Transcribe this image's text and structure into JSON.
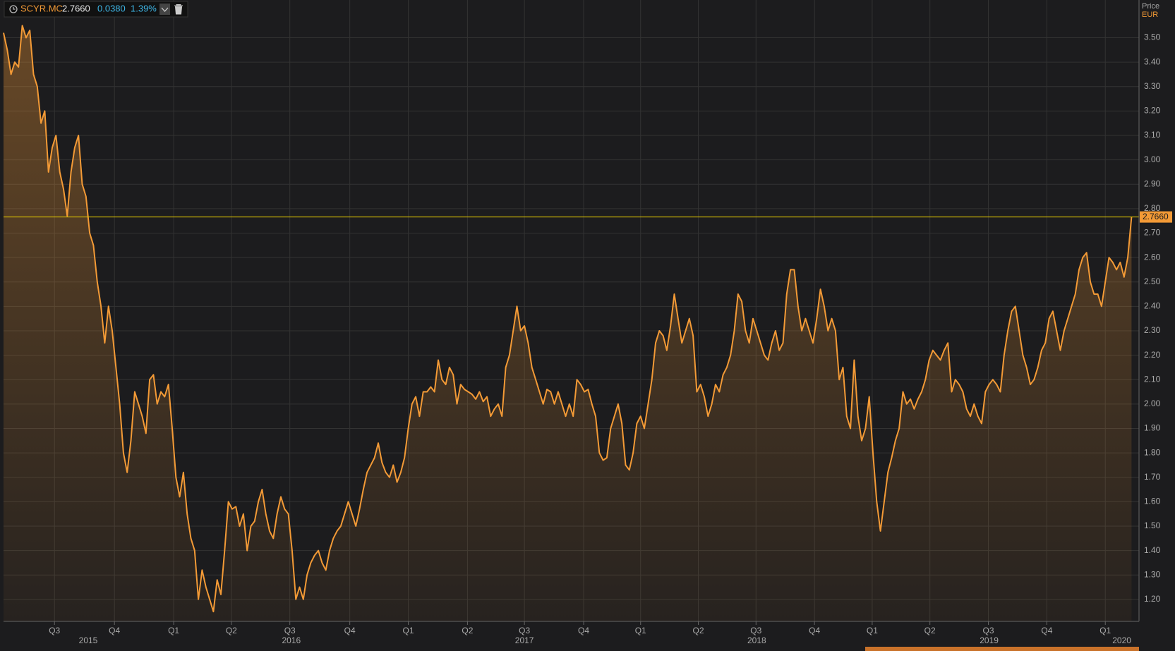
{
  "chart_data": {
    "type": "line",
    "ticker": "SCYR.MC",
    "last": {
      "value": 2.766,
      "label": "2.7660"
    },
    "change": {
      "value": 0.038,
      "label": "0.0380"
    },
    "change_pct": {
      "value": 1.39,
      "label": "1.39%"
    },
    "y_label": "Price",
    "y_unit": "EUR",
    "series": [
      {
        "name": "SCYR.MC",
        "color": "#f39a36",
        "values": [
          3.52,
          3.45,
          3.35,
          3.4,
          3.38,
          3.55,
          3.5,
          3.53,
          3.35,
          3.3,
          3.15,
          3.2,
          2.95,
          3.05,
          3.1,
          2.95,
          2.88,
          2.77,
          2.95,
          3.05,
          3.1,
          2.9,
          2.85,
          2.7,
          2.65,
          2.5,
          2.4,
          2.25,
          2.4,
          2.3,
          2.15,
          2.0,
          1.8,
          1.72,
          1.85,
          2.05,
          2.0,
          1.95,
          1.88,
          2.1,
          2.12,
          2.0,
          2.05,
          2.03,
          2.08,
          1.9,
          1.7,
          1.62,
          1.72,
          1.55,
          1.45,
          1.4,
          1.2,
          1.32,
          1.25,
          1.2,
          1.15,
          1.28,
          1.22,
          1.4,
          1.6,
          1.57,
          1.58,
          1.5,
          1.55,
          1.4,
          1.5,
          1.52,
          1.6,
          1.65,
          1.55,
          1.48,
          1.45,
          1.55,
          1.62,
          1.57,
          1.55,
          1.4,
          1.2,
          1.25,
          1.2,
          1.3,
          1.35,
          1.38,
          1.4,
          1.35,
          1.32,
          1.4,
          1.45,
          1.48,
          1.5,
          1.55,
          1.6,
          1.55,
          1.5,
          1.57,
          1.65,
          1.72,
          1.75,
          1.78,
          1.84,
          1.76,
          1.72,
          1.7,
          1.75,
          1.68,
          1.72,
          1.78,
          1.9,
          2.0,
          2.03,
          1.95,
          2.05,
          2.05,
          2.07,
          2.05,
          2.18,
          2.1,
          2.08,
          2.15,
          2.12,
          2.0,
          2.08,
          2.06,
          2.05,
          2.04,
          2.02,
          2.05,
          2.01,
          2.03,
          1.95,
          1.98,
          2.0,
          1.95,
          2.15,
          2.2,
          2.3,
          2.4,
          2.3,
          2.32,
          2.25,
          2.15,
          2.1,
          2.05,
          2.0,
          2.06,
          2.05,
          2.0,
          2.05,
          2.0,
          1.95,
          2.0,
          1.95,
          2.1,
          2.08,
          2.05,
          2.06,
          2.0,
          1.95,
          1.8,
          1.77,
          1.78,
          1.9,
          1.95,
          2.0,
          1.92,
          1.75,
          1.73,
          1.8,
          1.92,
          1.95,
          1.9,
          2.0,
          2.1,
          2.25,
          2.3,
          2.28,
          2.22,
          2.32,
          2.45,
          2.35,
          2.25,
          2.3,
          2.35,
          2.28,
          2.05,
          2.08,
          2.03,
          1.95,
          2.0,
          2.08,
          2.05,
          2.12,
          2.15,
          2.2,
          2.3,
          2.45,
          2.42,
          2.3,
          2.25,
          2.35,
          2.3,
          2.25,
          2.2,
          2.18,
          2.25,
          2.3,
          2.22,
          2.25,
          2.45,
          2.55,
          2.55,
          2.4,
          2.3,
          2.35,
          2.3,
          2.25,
          2.35,
          2.47,
          2.4,
          2.3,
          2.35,
          2.3,
          2.1,
          2.15,
          1.95,
          1.9,
          2.18,
          1.95,
          1.85,
          1.9,
          2.03,
          1.8,
          1.6,
          1.48,
          1.6,
          1.72,
          1.78,
          1.85,
          1.9,
          2.05,
          2.0,
          2.02,
          1.98,
          2.02,
          2.05,
          2.1,
          2.18,
          2.22,
          2.2,
          2.18,
          2.22,
          2.25,
          2.05,
          2.1,
          2.08,
          2.05,
          1.98,
          1.95,
          2.0,
          1.95,
          1.92,
          2.05,
          2.08,
          2.1,
          2.08,
          2.05,
          2.2,
          2.3,
          2.38,
          2.4,
          2.3,
          2.2,
          2.15,
          2.08,
          2.1,
          2.15,
          2.22,
          2.25,
          2.35,
          2.38,
          2.3,
          2.22,
          2.3,
          2.35,
          2.4,
          2.45,
          2.55,
          2.6,
          2.62,
          2.5,
          2.45,
          2.45,
          2.4,
          2.5,
          2.6,
          2.58,
          2.55,
          2.58,
          2.52,
          2.6,
          2.766
        ]
      }
    ],
    "xlim": [
      0,
      303
    ],
    "xticks": [
      {
        "value": 13.6,
        "label": "Q3"
      },
      {
        "value": 29.6,
        "label": "Q4"
      },
      {
        "value": 45.4,
        "label": "Q1"
      },
      {
        "value": 60.8,
        "label": "Q2"
      },
      {
        "value": 76.4,
        "label": "Q3"
      },
      {
        "value": 92.4,
        "label": "Q4"
      },
      {
        "value": 108,
        "label": "Q1"
      },
      {
        "value": 123.8,
        "label": "Q2"
      },
      {
        "value": 139,
        "label": "Q3"
      },
      {
        "value": 154.8,
        "label": "Q4"
      },
      {
        "value": 170,
        "label": "Q1"
      },
      {
        "value": 185.4,
        "label": "Q2"
      },
      {
        "value": 200.8,
        "label": "Q3"
      },
      {
        "value": 216.4,
        "label": "Q4"
      },
      {
        "value": 231.8,
        "label": "Q1"
      },
      {
        "value": 247.2,
        "label": "Q2"
      },
      {
        "value": 262.8,
        "label": "Q3"
      },
      {
        "value": 278.4,
        "label": "Q4"
      },
      {
        "value": 294,
        "label": "Q1"
      }
    ],
    "xyears": [
      {
        "value": 22.6,
        "label": "2015"
      },
      {
        "value": 76.8,
        "label": "2016"
      },
      {
        "value": 139,
        "label": "2017"
      },
      {
        "value": 201,
        "label": "2018"
      },
      {
        "value": 263,
        "label": "2019"
      },
      {
        "value": 298.4,
        "label": "2020"
      }
    ],
    "ylim": [
      1.11,
      3.64
    ],
    "yticks": [
      {
        "value": 1.2,
        "label": "1.20"
      },
      {
        "value": 1.3,
        "label": "1.30"
      },
      {
        "value": 1.4,
        "label": "1.40"
      },
      {
        "value": 1.5,
        "label": "1.50"
      },
      {
        "value": 1.6,
        "label": "1.60"
      },
      {
        "value": 1.7,
        "label": "1.70"
      },
      {
        "value": 1.8,
        "label": "1.80"
      },
      {
        "value": 1.9,
        "label": "1.90"
      },
      {
        "value": 2.0,
        "label": "2.00"
      },
      {
        "value": 2.1,
        "label": "2.10"
      },
      {
        "value": 2.2,
        "label": "2.20"
      },
      {
        "value": 2.3,
        "label": "2.30"
      },
      {
        "value": 2.4,
        "label": "2.40"
      },
      {
        "value": 2.5,
        "label": "2.50"
      },
      {
        "value": 2.6,
        "label": "2.60"
      },
      {
        "value": 2.7,
        "label": "2.70"
      },
      {
        "value": 2.8,
        "label": "2.80"
      },
      {
        "value": 2.9,
        "label": "2.90"
      },
      {
        "value": 3.0,
        "label": "3.00"
      },
      {
        "value": 3.1,
        "label": "3.10"
      },
      {
        "value": 3.2,
        "label": "3.20"
      },
      {
        "value": 3.3,
        "label": "3.30"
      },
      {
        "value": 3.4,
        "label": "3.40"
      },
      {
        "value": 3.5,
        "label": "3.50"
      }
    ],
    "grid": true,
    "last_line_color": "#e6cc00"
  }
}
